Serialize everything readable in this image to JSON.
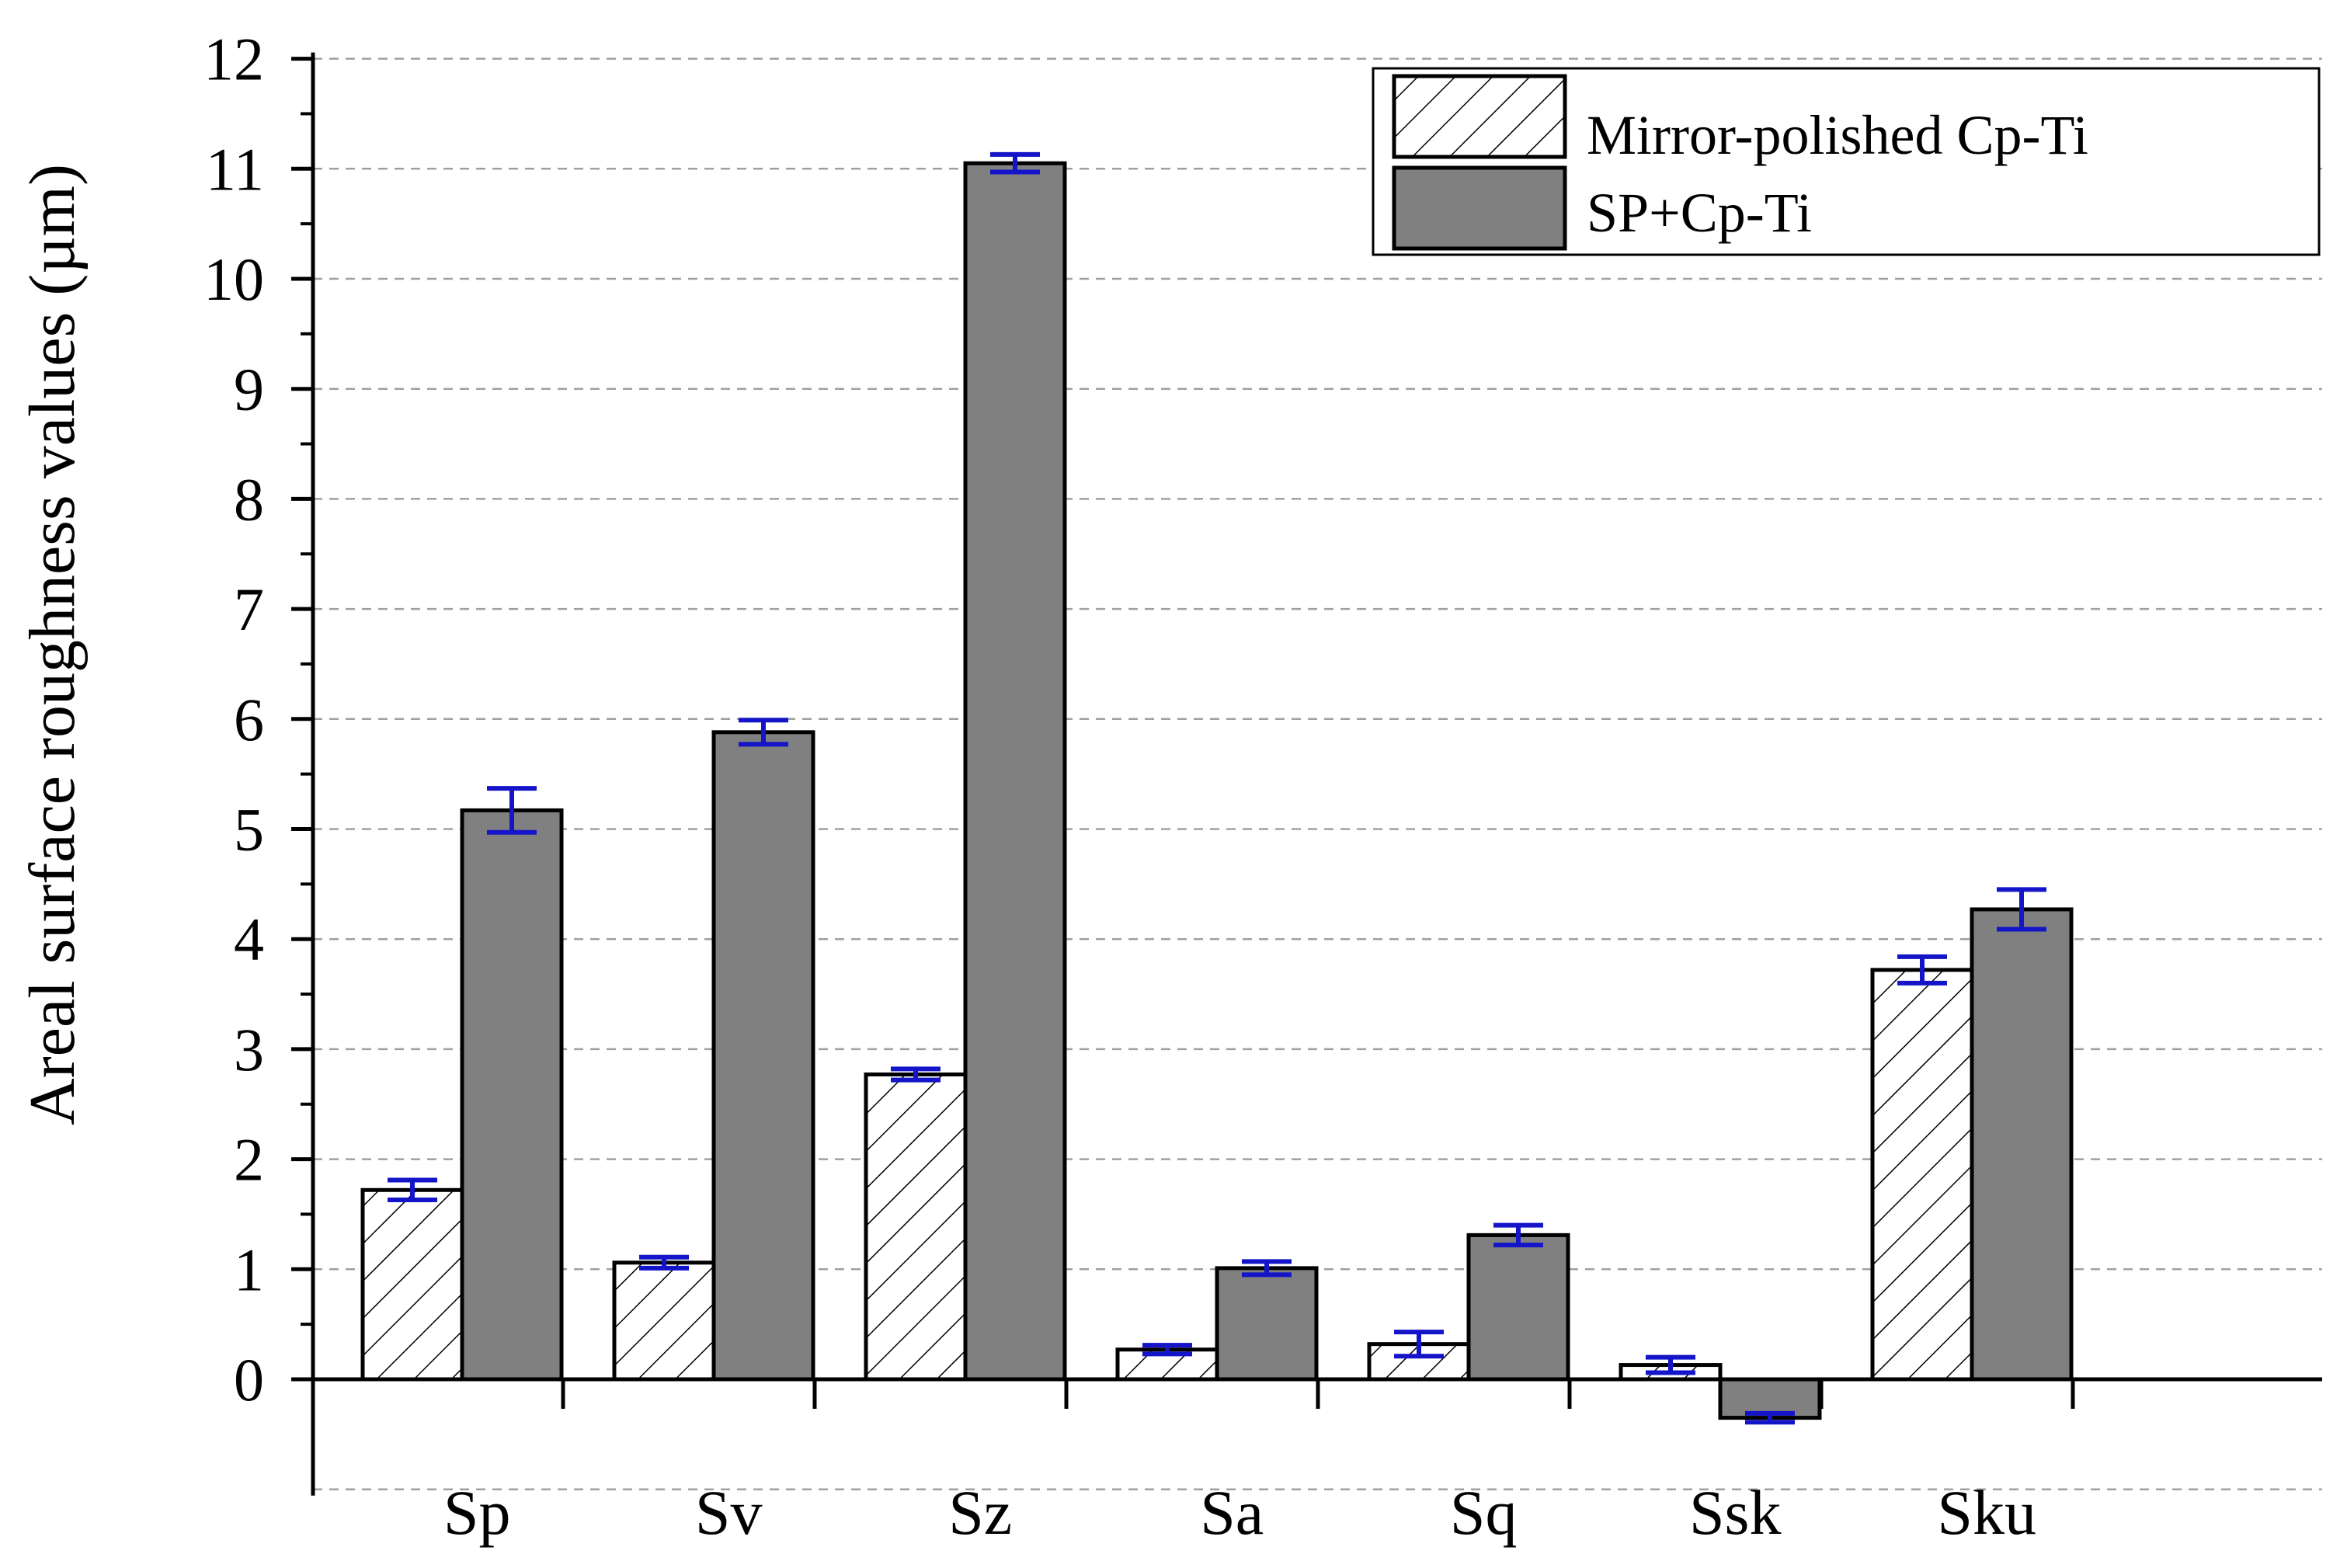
{
  "chart_data": {
    "type": "bar",
    "title": "",
    "xlabel": "",
    "ylabel": "Areal surface roughness values (µm)",
    "ylim": [
      -1,
      12
    ],
    "yticks": [
      "0",
      "1",
      "2",
      "3",
      "4",
      "5",
      "6",
      "7",
      "8",
      "9",
      "10",
      "11",
      "12"
    ],
    "grid": true,
    "legend_position": "top-right",
    "categories": [
      "Sp",
      "Sv",
      "Sz",
      "Sa",
      "Sq",
      "Ssk",
      "Sku"
    ],
    "series": [
      {
        "name": "Mirror-polished Cp-Ti",
        "pattern": "hatched",
        "values": [
          1.72,
          1.06,
          2.77,
          0.27,
          0.32,
          0.13,
          3.72
        ],
        "errors": [
          0.09,
          0.05,
          0.05,
          0.04,
          0.11,
          0.07,
          0.12
        ]
      },
      {
        "name": "SP+Cp-Ti",
        "pattern": "solid",
        "values": [
          5.17,
          5.88,
          11.05,
          1.01,
          1.31,
          -0.35,
          4.27
        ],
        "errors": [
          0.2,
          0.11,
          0.08,
          0.06,
          0.09,
          0.04,
          0.18
        ]
      }
    ],
    "colors": {
      "solid_fill": "#808080",
      "hatch_fill": "#ffffff",
      "bar_stroke": "#000000",
      "error_bar": "#1414c8",
      "grid": "#a0a0a0"
    }
  }
}
